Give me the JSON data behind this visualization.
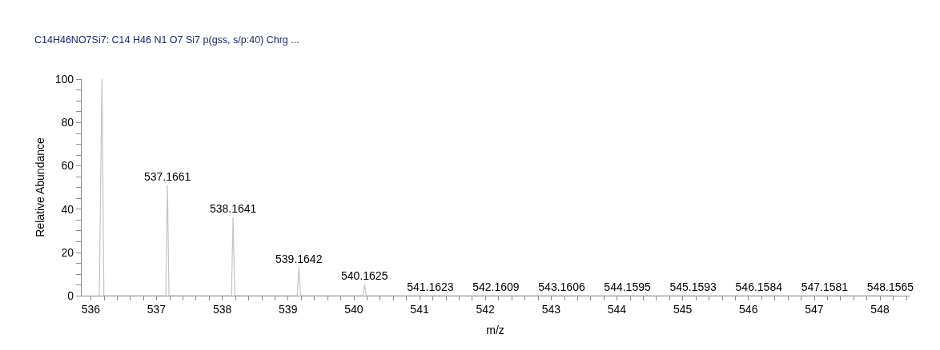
{
  "chart_data": {
    "type": "line",
    "title": "C14H46NO7Si7: C14 H46 N1 O7 Si7 p(gss, s/p:40) Chrg ...",
    "xlabel": "m/z",
    "ylabel": "Relative Abundance",
    "x": [
      536.13,
      536.17,
      536.2,
      537.14,
      537.1661,
      537.19,
      538.14,
      538.1641,
      538.19,
      539.14,
      539.1642,
      539.19,
      540.14,
      540.1625,
      540.19,
      541.14,
      541.1623,
      541.19,
      542.14,
      542.1609,
      542.19,
      543.14,
      543.1606,
      543.19,
      544.14,
      544.1595,
      544.19,
      545.14,
      545.1593,
      545.19,
      546.14,
      546.1584,
      546.19,
      547.14,
      547.1581,
      547.19,
      548.14,
      548.1565,
      548.19
    ],
    "values": [
      0,
      100,
      0,
      0,
      51,
      0,
      0,
      36,
      0,
      0,
      13,
      0,
      0,
      5,
      0,
      0,
      0,
      0,
      0,
      0,
      0,
      0,
      0,
      0,
      0,
      0,
      0,
      0,
      0,
      0,
      0,
      0,
      0,
      0,
      0,
      0,
      0,
      0,
      0
    ],
    "annotations": [
      {
        "text": "537.1661",
        "x": 537.1661,
        "y": 51
      },
      {
        "text": "538.1641",
        "x": 538.1641,
        "y": 36
      },
      {
        "text": "539.1642",
        "x": 539.1642,
        "y": 13
      },
      {
        "text": "540.1625",
        "x": 540.1625,
        "y": 5
      },
      {
        "text": "541.1623",
        "x": 541.1623,
        "y": 0
      },
      {
        "text": "542.1609",
        "x": 542.1609,
        "y": 0
      },
      {
        "text": "543.1606",
        "x": 543.1606,
        "y": 0
      },
      {
        "text": "544.1595",
        "x": 544.1595,
        "y": 0
      },
      {
        "text": "545.1593",
        "x": 545.1593,
        "y": 0
      },
      {
        "text": "546.1584",
        "x": 546.1584,
        "y": 0
      },
      {
        "text": "547.1581",
        "x": 547.1581,
        "y": 0
      },
      {
        "text": "548.1565",
        "x": 548.1565,
        "y": 0
      }
    ],
    "color": "#c4c4c4",
    "marker": "none",
    "xlim": [
      535.85,
      548.45
    ],
    "ylim": [
      0,
      100
    ],
    "xticks": [
      536,
      {
        "value": 536.2,
        "label": null
      },
      {
        "value": 536.4,
        "label": null
      },
      {
        "value": 536.6,
        "label": null
      },
      {
        "value": 536.8,
        "label": null
      },
      537,
      {
        "value": 537.2,
        "label": null
      },
      {
        "value": 537.4,
        "label": null
      },
      {
        "value": 537.6,
        "label": null
      },
      {
        "value": 537.8,
        "label": null
      },
      538,
      {
        "value": 538.2,
        "label": null
      },
      {
        "value": 538.4,
        "label": null
      },
      {
        "value": 538.6,
        "label": null
      },
      {
        "value": 538.8,
        "label": null
      },
      539,
      {
        "value": 539.2,
        "label": null
      },
      {
        "value": 539.4,
        "label": null
      },
      {
        "value": 539.6,
        "label": null
      },
      {
        "value": 539.8,
        "label": null
      },
      540,
      {
        "value": 540.2,
        "label": null
      },
      {
        "value": 540.4,
        "label": null
      },
      {
        "value": 540.6,
        "label": null
      },
      {
        "value": 540.8,
        "label": null
      },
      541,
      {
        "value": 541.2,
        "label": null
      },
      {
        "value": 541.4,
        "label": null
      },
      {
        "value": 541.6,
        "label": null
      },
      {
        "value": 541.8,
        "label": null
      },
      542,
      {
        "value": 542.2,
        "label": null
      },
      {
        "value": 542.4,
        "label": null
      },
      {
        "value": 542.6,
        "label": null
      },
      {
        "value": 542.8,
        "label": null
      },
      543,
      {
        "value": 543.2,
        "label": null
      },
      {
        "value": 543.4,
        "label": null
      },
      {
        "value": 543.6,
        "label": null
      },
      {
        "value": 543.8,
        "label": null
      },
      544,
      {
        "value": 544.2,
        "label": null
      },
      {
        "value": 544.4,
        "label": null
      },
      {
        "value": 544.6,
        "label": null
      },
      {
        "value": 544.8,
        "label": null
      },
      545,
      {
        "value": 545.2,
        "label": null
      },
      {
        "value": 545.4,
        "label": null
      },
      {
        "value": 545.6,
        "label": null
      },
      {
        "value": 545.8,
        "label": null
      },
      546,
      {
        "value": 546.2,
        "label": null
      },
      {
        "value": 546.4,
        "label": null
      },
      {
        "value": 546.6,
        "label": null
      },
      {
        "value": 546.8,
        "label": null
      },
      547,
      {
        "value": 547.2,
        "label": null
      },
      {
        "value": 547.4,
        "label": null
      },
      {
        "value": 547.6,
        "label": null
      },
      {
        "value": 547.8,
        "label": null
      },
      548,
      {
        "value": 548.2,
        "label": null
      },
      {
        "value": 548.4,
        "label": null
      }
    ],
    "yticks": [
      0,
      {
        "value": 5,
        "label": null
      },
      {
        "value": 10,
        "label": null
      },
      {
        "value": 15,
        "label": null
      },
      20,
      {
        "value": 25,
        "label": null
      },
      {
        "value": 30,
        "label": null
      },
      {
        "value": 35,
        "label": null
      },
      40,
      {
        "value": 45,
        "label": null
      },
      {
        "value": 50,
        "label": null
      },
      {
        "value": 55,
        "label": null
      },
      60,
      {
        "value": 65,
        "label": null
      },
      {
        "value": 70,
        "label": null
      },
      {
        "value": 75,
        "label": null
      },
      80,
      {
        "value": 85,
        "label": null
      },
      {
        "value": 90,
        "label": null
      },
      {
        "value": 95,
        "label": null
      },
      100
    ]
  }
}
